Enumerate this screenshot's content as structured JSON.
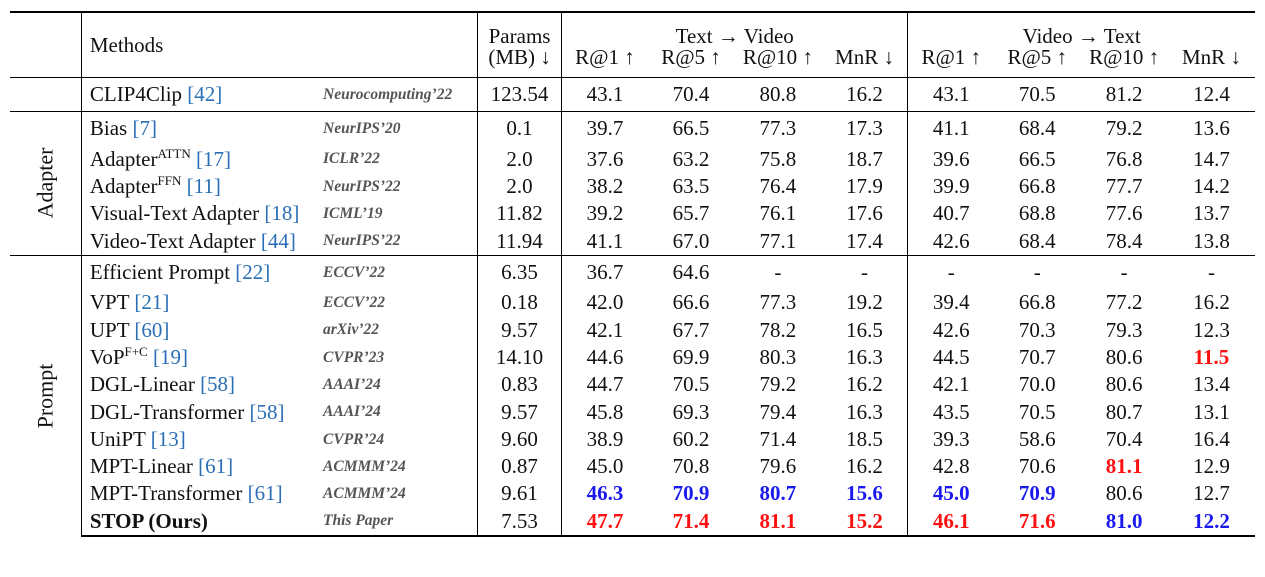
{
  "header": {
    "methods": "Methods",
    "params_l1": "Params",
    "params_l2": "(MB) ↓",
    "text_to_video": "Text → Video",
    "video_to_text": "Video → Text",
    "metrics": [
      "R@1 ↑",
      "R@5 ↑",
      "R@10 ↑",
      "MnR ↓",
      "R@1 ↑",
      "R@5 ↑",
      "R@10 ↑",
      "MnR ↓"
    ]
  },
  "baseline": {
    "name": "CLIP4Clip",
    "cite": "[42]",
    "venue": "Neurocomputing’22",
    "params": "123.54",
    "values": [
      "43.1",
      "70.4",
      "80.8",
      "16.2",
      "43.1",
      "70.5",
      "81.2",
      "12.4"
    ]
  },
  "groups": {
    "adapter": "Adapter",
    "prompt": "Prompt"
  },
  "adapter_rows": [
    {
      "name": "Bias",
      "sup": "",
      "cite": "[7]",
      "venue": "NeurIPS’20",
      "params": "0.1",
      "values": [
        "39.7",
        "66.5",
        "77.3",
        "17.3",
        "41.1",
        "68.4",
        "79.2",
        "13.6"
      ]
    },
    {
      "name": "Adapter",
      "sup": "ATTN",
      "cite": "[17]",
      "venue": "ICLR’22",
      "params": "2.0",
      "values": [
        "37.6",
        "63.2",
        "75.8",
        "18.7",
        "39.6",
        "66.5",
        "76.8",
        "14.7"
      ]
    },
    {
      "name": "Adapter",
      "sup": "FFN",
      "cite": "[11]",
      "venue": "NeurIPS’22",
      "params": "2.0",
      "values": [
        "38.2",
        "63.5",
        "76.4",
        "17.9",
        "39.9",
        "66.8",
        "77.7",
        "14.2"
      ]
    },
    {
      "name": "Visual-Text Adapter",
      "sup": "",
      "cite": "[18]",
      "venue": "ICML’19",
      "params": "11.82",
      "values": [
        "39.2",
        "65.7",
        "76.1",
        "17.6",
        "40.7",
        "68.8",
        "77.6",
        "13.7"
      ]
    },
    {
      "name": "Video-Text Adapter",
      "sup": "",
      "cite": "[44]",
      "venue": "NeurIPS’22",
      "params": "11.94",
      "values": [
        "41.1",
        "67.0",
        "77.1",
        "17.4",
        "42.6",
        "68.4",
        "78.4",
        "13.8"
      ]
    }
  ],
  "prompt_rows": [
    {
      "name": "Efficient Prompt",
      "sup": "",
      "cite": "[22]",
      "venue": "ECCV’22",
      "params": "6.35",
      "values": [
        "36.7",
        "64.6",
        "-",
        "-",
        "-",
        "-",
        "-",
        "-"
      ],
      "hl": [
        "",
        "",
        "",
        "",
        "",
        "",
        "",
        ""
      ]
    },
    {
      "name": "VPT",
      "sup": "",
      "cite": "[21]",
      "venue": "ECCV’22",
      "params": "0.18",
      "values": [
        "42.0",
        "66.6",
        "77.3",
        "19.2",
        "39.4",
        "66.8",
        "77.2",
        "16.2"
      ],
      "hl": [
        "",
        "",
        "",
        "",
        "",
        "",
        "",
        ""
      ]
    },
    {
      "name": "UPT",
      "sup": "",
      "cite": "[60]",
      "venue": "arXiv’22",
      "params": "9.57",
      "values": [
        "42.1",
        "67.7",
        "78.2",
        "16.5",
        "42.6",
        "70.3",
        "79.3",
        "12.3"
      ],
      "hl": [
        "",
        "",
        "",
        "",
        "",
        "",
        "",
        ""
      ]
    },
    {
      "name": "VoP",
      "sup": "F+C",
      "cite": "[19]",
      "venue": "CVPR’23",
      "params": "14.10",
      "values": [
        "44.6",
        "69.9",
        "80.3",
        "16.3",
        "44.5",
        "70.7",
        "80.6",
        "11.5"
      ],
      "hl": [
        "",
        "",
        "",
        "",
        "",
        "",
        "",
        "red"
      ]
    },
    {
      "name": "DGL-Linear",
      "sup": "",
      "cite": "[58]",
      "venue": "AAAI’24",
      "params": "0.83",
      "values": [
        "44.7",
        "70.5",
        "79.2",
        "16.2",
        "42.1",
        "70.0",
        "80.6",
        "13.4"
      ],
      "hl": [
        "",
        "",
        "",
        "",
        "",
        "",
        "",
        ""
      ]
    },
    {
      "name": "DGL-Transformer",
      "sup": "",
      "cite": "[58]",
      "venue": "AAAI’24",
      "params": "9.57",
      "values": [
        "45.8",
        "69.3",
        "79.4",
        "16.3",
        "43.5",
        "70.5",
        "80.7",
        "13.1"
      ],
      "hl": [
        "",
        "",
        "",
        "",
        "",
        "",
        "",
        ""
      ]
    },
    {
      "name": "UniPT",
      "sup": "",
      "cite": "[13]",
      "venue": "CVPR’24",
      "params": "9.60",
      "values": [
        "38.9",
        "60.2",
        "71.4",
        "18.5",
        "39.3",
        "58.6",
        "70.4",
        "16.4"
      ],
      "hl": [
        "",
        "",
        "",
        "",
        "",
        "",
        "",
        ""
      ]
    },
    {
      "name": "MPT-Linear",
      "sup": "",
      "cite": "[61]",
      "venue": "ACMMM’24",
      "params": "0.87",
      "values": [
        "45.0",
        "70.8",
        "79.6",
        "16.2",
        "42.8",
        "70.6",
        "81.1",
        "12.9"
      ],
      "hl": [
        "",
        "",
        "",
        "",
        "",
        "",
        "red",
        ""
      ]
    },
    {
      "name": "MPT-Transformer",
      "sup": "",
      "cite": "[61]",
      "venue": "ACMMM’24",
      "params": "9.61",
      "values": [
        "46.3",
        "70.9",
        "80.7",
        "15.6",
        "45.0",
        "70.9",
        "80.6",
        "12.7"
      ],
      "hl": [
        "blue",
        "blue",
        "blue",
        "blue",
        "blue",
        "blue",
        "",
        ""
      ]
    },
    {
      "name": "STOP (Ours)",
      "sup": "",
      "cite": "",
      "venue": "This Paper",
      "params": "7.53",
      "bold": true,
      "values": [
        "47.7",
        "71.4",
        "81.1",
        "15.2",
        "46.1",
        "71.6",
        "81.0",
        "12.2"
      ],
      "hl": [
        "red",
        "red",
        "red",
        "red",
        "red",
        "red",
        "blue",
        "blue"
      ]
    }
  ],
  "colors": {
    "best": "#ff1010",
    "second": "#1a1aee",
    "cite": "#2a6fb5",
    "venue": "#555555"
  }
}
